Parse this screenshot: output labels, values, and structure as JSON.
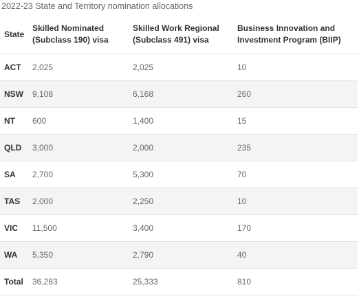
{
  "caption": "2022-23 State and Territory nomination allocations",
  "table": {
    "headers": {
      "state": "State",
      "subclass190_line1": "Skilled Nominated",
      "subclass190_line2": "(Subclass 190) visa",
      "subclass491_line1": "Skilled Work Regional",
      "subclass491_line2": "(Subclass 491) visa",
      "biip_line1": "Business Innovation and",
      "biip_line2": "Investment Program (BIIP)"
    },
    "rows": [
      {
        "state": "ACT",
        "subclass190": "2,025",
        "subclass491": "2,025",
        "biip": "10"
      },
      {
        "state": "NSW",
        "subclass190": "9,108",
        "subclass491": "6,168",
        "biip": "260"
      },
      {
        "state": "NT",
        "subclass190": "600",
        "subclass491": "1,400",
        "biip": "15"
      },
      {
        "state": "QLD",
        "subclass190": "3,000",
        "subclass491": "2,000",
        "biip": "235"
      },
      {
        "state": "SA",
        "subclass190": "2,700",
        "subclass491": "5,300",
        "biip": "70"
      },
      {
        "state": "TAS",
        "subclass190": "2,000",
        "subclass491": "2,250",
        "biip": "10"
      },
      {
        "state": "VIC",
        "subclass190": "11,500",
        "subclass491": "3,400",
        "biip": "170"
      },
      {
        "state": "WA",
        "subclass190": "5,350",
        "subclass491": "2,790",
        "biip": "40"
      },
      {
        "state": "Total",
        "subclass190": "36,283",
        "subclass491": "25,333",
        "biip": "810"
      }
    ]
  },
  "colors": {
    "header_text": "#333333",
    "body_text": "#666666",
    "stripe": "#f4f4f4",
    "rule": "#e3e3e3"
  }
}
